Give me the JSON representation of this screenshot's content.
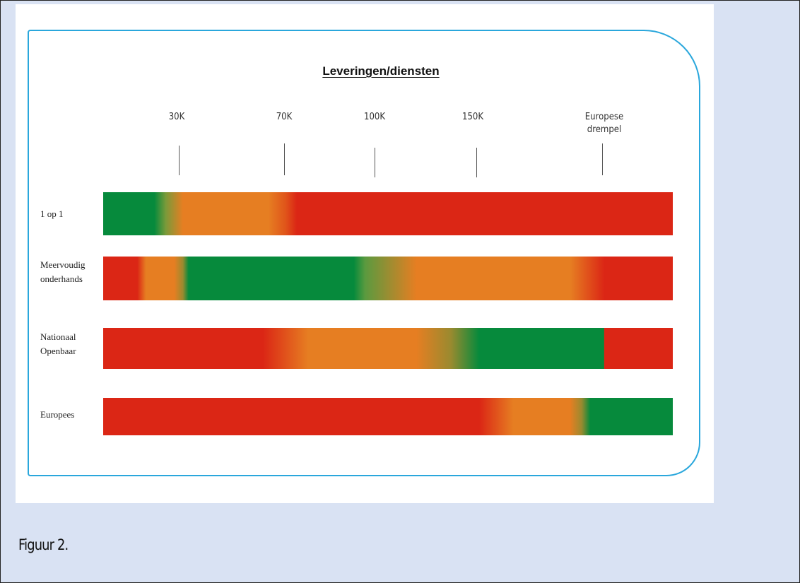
{
  "figure": {
    "title": "Leveringen/diensten",
    "caption": "Figuur 2.",
    "frame_color": "#2aa7dc",
    "colors": {
      "green": "#068a3c",
      "orange": "#e67e22",
      "red": "#db2615"
    }
  },
  "thresholds": [
    {
      "label": "30K"
    },
    {
      "label": "70K"
    },
    {
      "label": "100K"
    },
    {
      "label": "150K"
    },
    {
      "label": "Europese\ndrempel"
    }
  ],
  "rows": [
    {
      "label": "1 op 1"
    },
    {
      "label": "Meervoudig\nonderhands"
    },
    {
      "label": "Nationaal\nOpenbaar"
    },
    {
      "label": "Europees"
    }
  ]
}
